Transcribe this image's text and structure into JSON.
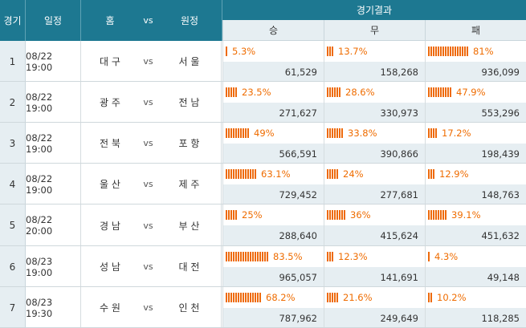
{
  "header": {
    "round": "경기",
    "schedule": "일정",
    "home": "홈",
    "vs": "vs",
    "away": "원정",
    "result": "경기결과",
    "win": "승",
    "draw": "무",
    "loss": "패"
  },
  "colors": {
    "header_bg": "#1d7891",
    "bar": "#ee6a0b",
    "pct_text": "#ef6c00",
    "count_bg": "#e6eef2"
  },
  "rows": [
    {
      "no": "1",
      "date": "08/22 19:00",
      "home": "대 구",
      "vs": "vs",
      "away": "서 울",
      "win": {
        "pct_value": 5.3,
        "pct": "5.3%",
        "count": "61,529"
      },
      "draw": {
        "pct_value": 13.7,
        "pct": "13.7%",
        "count": "158,268"
      },
      "loss": {
        "pct_value": 81,
        "pct": "81%",
        "count": "936,099"
      }
    },
    {
      "no": "2",
      "date": "08/22 19:00",
      "home": "광 주",
      "vs": "vs",
      "away": "전 남",
      "win": {
        "pct_value": 23.5,
        "pct": "23.5%",
        "count": "271,627"
      },
      "draw": {
        "pct_value": 28.6,
        "pct": "28.6%",
        "count": "330,973"
      },
      "loss": {
        "pct_value": 47.9,
        "pct": "47.9%",
        "count": "553,296"
      }
    },
    {
      "no": "3",
      "date": "08/22 19:00",
      "home": "전 북",
      "vs": "vs",
      "away": "포 항",
      "win": {
        "pct_value": 49,
        "pct": "49%",
        "count": "566,591"
      },
      "draw": {
        "pct_value": 33.8,
        "pct": "33.8%",
        "count": "390,866"
      },
      "loss": {
        "pct_value": 17.2,
        "pct": "17.2%",
        "count": "198,439"
      }
    },
    {
      "no": "4",
      "date": "08/22 19:00",
      "home": "울 산",
      "vs": "vs",
      "away": "제 주",
      "win": {
        "pct_value": 63.1,
        "pct": "63.1%",
        "count": "729,452"
      },
      "draw": {
        "pct_value": 24,
        "pct": "24%",
        "count": "277,681"
      },
      "loss": {
        "pct_value": 12.9,
        "pct": "12.9%",
        "count": "148,763"
      }
    },
    {
      "no": "5",
      "date": "08/22 20:00",
      "home": "경 남",
      "vs": "vs",
      "away": "부 산",
      "win": {
        "pct_value": 25,
        "pct": "25%",
        "count": "288,640"
      },
      "draw": {
        "pct_value": 36,
        "pct": "36%",
        "count": "415,624"
      },
      "loss": {
        "pct_value": 39.1,
        "pct": "39.1%",
        "count": "451,632"
      }
    },
    {
      "no": "6",
      "date": "08/23 19:00",
      "home": "성 남",
      "vs": "vs",
      "away": "대 전",
      "win": {
        "pct_value": 83.5,
        "pct": "83.5%",
        "count": "965,057"
      },
      "draw": {
        "pct_value": 12.3,
        "pct": "12.3%",
        "count": "141,691"
      },
      "loss": {
        "pct_value": 4.3,
        "pct": "4.3%",
        "count": "49,148"
      }
    },
    {
      "no": "7",
      "date": "08/23 19:30",
      "home": "수 원",
      "vs": "vs",
      "away": "인 천",
      "win": {
        "pct_value": 68.2,
        "pct": "68.2%",
        "count": "787,962"
      },
      "draw": {
        "pct_value": 21.6,
        "pct": "21.6%",
        "count": "249,649"
      },
      "loss": {
        "pct_value": 10.2,
        "pct": "10.2%",
        "count": "118,285"
      }
    }
  ]
}
